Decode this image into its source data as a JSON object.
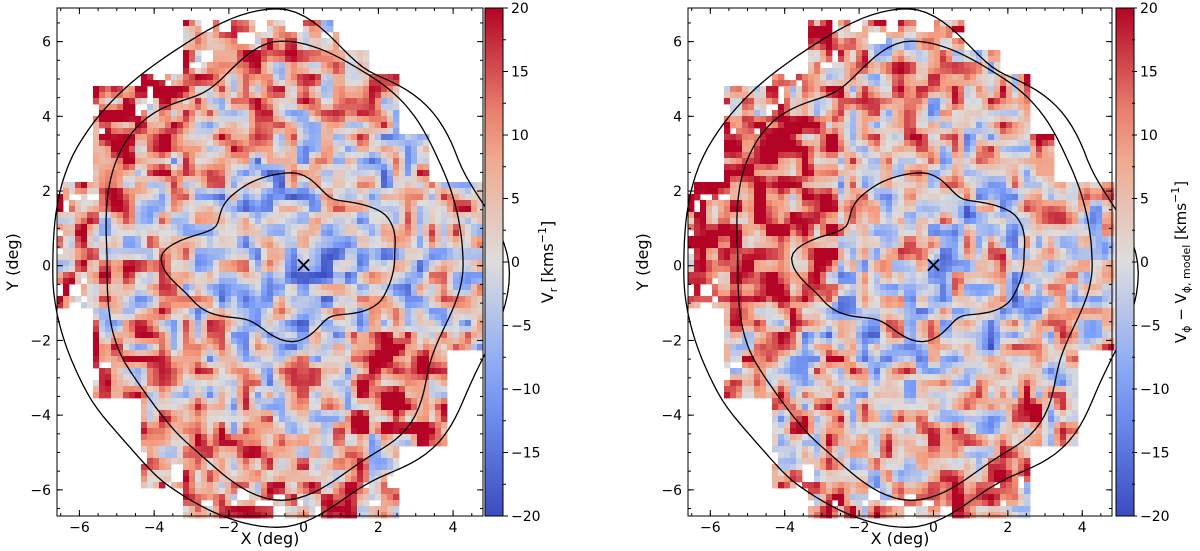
{
  "chart_data": [
    {
      "type": "heatmap",
      "panel": "left",
      "xlabel": "X (deg)",
      "ylabel": "Y (deg)",
      "xlim": [
        -6.6,
        4.8
      ],
      "ylim": [
        -6.7,
        6.9
      ],
      "xticks": [
        -6,
        -4,
        -2,
        0,
        2,
        4
      ],
      "yticks": [
        -6,
        -4,
        -2,
        0,
        2,
        4,
        6
      ],
      "xtick_labels": [
        "−6",
        "−4",
        "−2",
        "0",
        "2",
        "4"
      ],
      "ytick_labels": [
        "−6",
        "−4",
        "−2",
        "0",
        "2",
        "4",
        "6"
      ],
      "colorbar": {
        "label_base": "V",
        "label_sub": "r",
        "label_unit": " [kms",
        "label_exp": "−1",
        "label_close": "]",
        "range": [
          -20,
          20
        ],
        "ticks": [
          -20,
          -15,
          -10,
          -5,
          0,
          5,
          10,
          15,
          20
        ],
        "tick_labels": [
          "−20",
          "−15",
          "−10",
          "−5",
          "0",
          "5",
          "10",
          "15",
          "20"
        ],
        "colormap": "coolwarm"
      },
      "center_marker": {
        "x": 0,
        "y": 0,
        "symbol": "×"
      },
      "grid": false,
      "pattern": "radial"
    },
    {
      "type": "heatmap",
      "panel": "right",
      "xlabel": "X (deg)",
      "ylabel": "Y (deg)",
      "xlim": [
        -6.6,
        4.8
      ],
      "ylim": [
        -6.7,
        6.9
      ],
      "xticks": [
        -6,
        -4,
        -2,
        0,
        2,
        4
      ],
      "yticks": [
        -6,
        -4,
        -2,
        0,
        2,
        4,
        6
      ],
      "xtick_labels": [
        "−6",
        "−4",
        "−2",
        "0",
        "2",
        "4"
      ],
      "ytick_labels": [
        "−6",
        "−4",
        "−2",
        "0",
        "2",
        "4",
        "6"
      ],
      "colorbar": {
        "label_base": "V",
        "label_sub": "ϕ",
        "label_mid": " − V",
        "label_sub2": "ϕ, model",
        "label_unit": " [kms",
        "label_exp": "−1",
        "label_close": "]",
        "range": [
          -20,
          20
        ],
        "ticks": [
          -20,
          -15,
          -10,
          -5,
          0,
          5,
          10,
          15,
          20
        ],
        "tick_labels": [
          "−20",
          "−15",
          "−10",
          "−5",
          "0",
          "5",
          "10",
          "15",
          "20"
        ],
        "colormap": "coolwarm"
      },
      "center_marker": {
        "x": 0,
        "y": 0,
        "symbol": "×"
      },
      "grid": false,
      "pattern": "tangential"
    }
  ]
}
